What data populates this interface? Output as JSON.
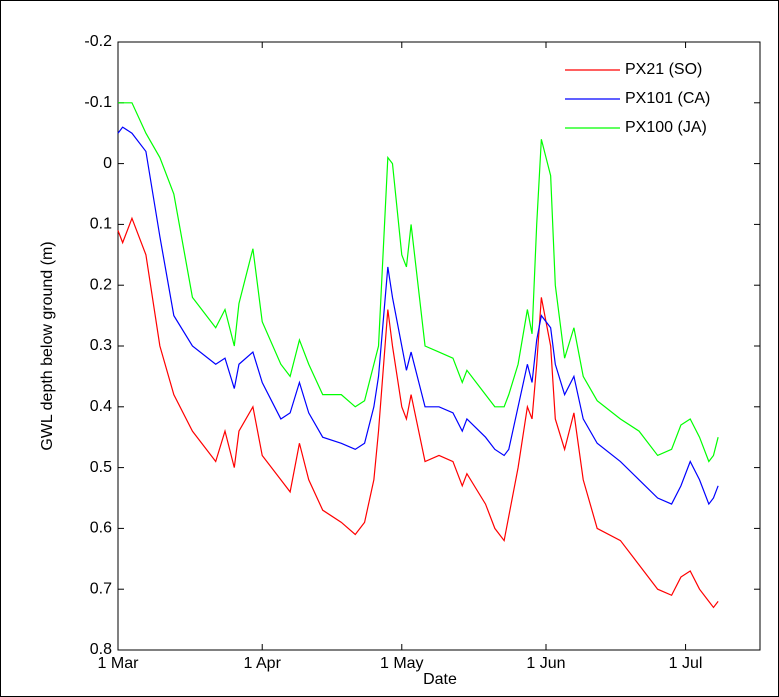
{
  "chart_data": {
    "type": "line",
    "x_label": "Date",
    "y_label": "GWL depth below ground (m)",
    "x": [
      "1 Mar",
      "2 Mar",
      "4 Mar",
      "7 Mar",
      "10 Mar",
      "13 Mar",
      "17 Mar",
      "22 Mar",
      "24 Mar",
      "26 Mar",
      "27 Mar",
      "30 Mar",
      "1 Apr",
      "5 Apr",
      "7 Apr",
      "9 Apr",
      "11 Apr",
      "14 Apr",
      "18 Apr",
      "21 Apr",
      "23 Apr",
      "25 Apr",
      "26 Apr",
      "28 Apr",
      "29 Apr",
      "1 May",
      "2 May",
      "3 May",
      "6 May",
      "9 May",
      "12 May",
      "14 May",
      "15 May",
      "19 May",
      "21 May",
      "23 May",
      "24 May",
      "26 May",
      "28 May",
      "29 May",
      "30 May",
      "31 May",
      "2 Jun",
      "3 Jun",
      "5 Jun",
      "7 Jun",
      "9 Jun",
      "12 Jun",
      "17 Jun",
      "21 Jun",
      "25 Jun",
      "28 Jun",
      "30 Jun",
      "2 Jul",
      "4 Jul",
      "6 Jul",
      "7 Jul",
      "8 Jul"
    ],
    "series": [
      {
        "name": "PX21 (SO)",
        "color": "#ff0000",
        "values": [
          0.11,
          0.13,
          0.09,
          0.15,
          0.3,
          0.38,
          0.44,
          0.49,
          0.44,
          0.5,
          0.44,
          0.4,
          0.48,
          0.52,
          0.54,
          0.46,
          0.52,
          0.57,
          0.59,
          0.61,
          0.59,
          0.52,
          0.44,
          0.24,
          0.3,
          0.4,
          0.42,
          0.38,
          0.49,
          0.48,
          0.49,
          0.53,
          0.51,
          0.56,
          0.6,
          0.62,
          0.58,
          0.5,
          0.4,
          0.42,
          0.33,
          0.22,
          0.3,
          0.42,
          0.47,
          0.41,
          0.52,
          0.6,
          0.62,
          0.66,
          0.7,
          0.71,
          0.68,
          0.67,
          0.7,
          0.72,
          0.73,
          0.72
        ]
      },
      {
        "name": "PX101 (CA)",
        "color": "#0000ff",
        "values": [
          -0.05,
          -0.06,
          -0.05,
          -0.02,
          0.12,
          0.25,
          0.3,
          0.33,
          0.32,
          0.37,
          0.33,
          0.31,
          0.36,
          0.42,
          0.41,
          0.36,
          0.41,
          0.45,
          0.46,
          0.47,
          0.46,
          0.4,
          0.35,
          0.17,
          0.22,
          0.3,
          0.34,
          0.31,
          0.4,
          0.4,
          0.41,
          0.44,
          0.42,
          0.45,
          0.47,
          0.48,
          0.47,
          0.4,
          0.33,
          0.36,
          0.29,
          0.25,
          0.27,
          0.33,
          0.38,
          0.35,
          0.42,
          0.46,
          0.49,
          0.52,
          0.55,
          0.56,
          0.53,
          0.49,
          0.52,
          0.56,
          0.55,
          0.53
        ]
      },
      {
        "name": "PX100 (JA)",
        "color": "#00ff00",
        "values": [
          -0.1,
          -0.1,
          -0.1,
          -0.05,
          -0.01,
          0.05,
          0.22,
          0.27,
          0.24,
          0.3,
          0.23,
          0.14,
          0.26,
          0.33,
          0.35,
          0.29,
          0.33,
          0.38,
          0.38,
          0.4,
          0.39,
          0.33,
          0.3,
          -0.01,
          0.0,
          0.15,
          0.17,
          0.1,
          0.3,
          0.31,
          0.32,
          0.36,
          0.34,
          0.38,
          0.4,
          0.4,
          0.38,
          0.33,
          0.24,
          0.28,
          0.1,
          -0.04,
          0.02,
          0.2,
          0.32,
          0.27,
          0.35,
          0.39,
          0.42,
          0.44,
          0.48,
          0.47,
          0.43,
          0.42,
          0.45,
          0.49,
          0.48,
          0.45
        ]
      }
    ],
    "xlim": [
      "1 Mar",
      "17 Jul"
    ],
    "xticks": [
      "1 Mar",
      "1 Apr",
      "1 May",
      "1 Jun",
      "1 Jul"
    ],
    "ylim": [
      -0.2,
      0.8
    ],
    "yticks": [
      -0.2,
      -0.1,
      0,
      0.1,
      0.2,
      0.3,
      0.4,
      0.5,
      0.6,
      0.7,
      0.8
    ],
    "y_reversed": true,
    "legend": "upper right",
    "grid": false
  }
}
